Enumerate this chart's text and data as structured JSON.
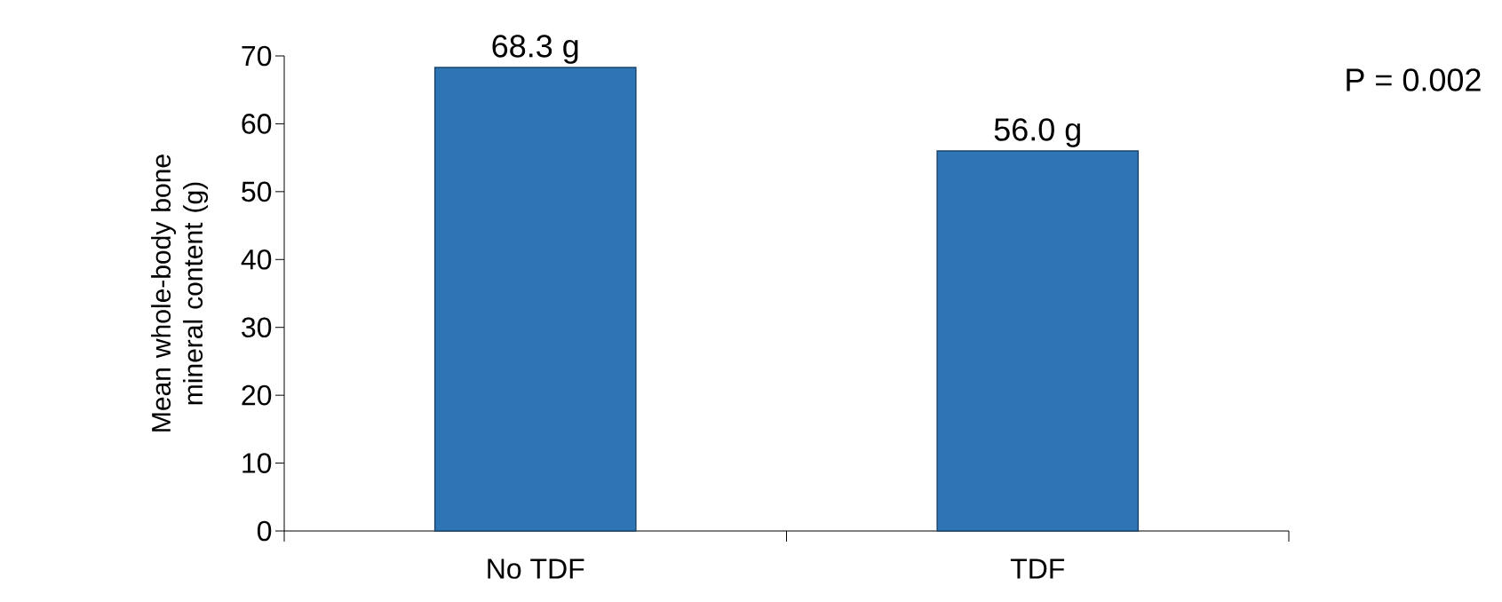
{
  "chart_data": {
    "type": "bar",
    "ylabel": "Mean whole-body bone mineral content  (g)",
    "categories": [
      "No TDF",
      "TDF"
    ],
    "values": [
      68.3,
      56.0
    ],
    "value_labels": [
      "68.3 g",
      "56.0 g"
    ],
    "color": "#2e75b6",
    "ylim": [
      0,
      70
    ],
    "yticks": [
      0,
      10,
      20,
      30,
      40,
      50,
      60,
      70
    ],
    "grid": false,
    "annotations": [
      "P = 0.002"
    ]
  }
}
